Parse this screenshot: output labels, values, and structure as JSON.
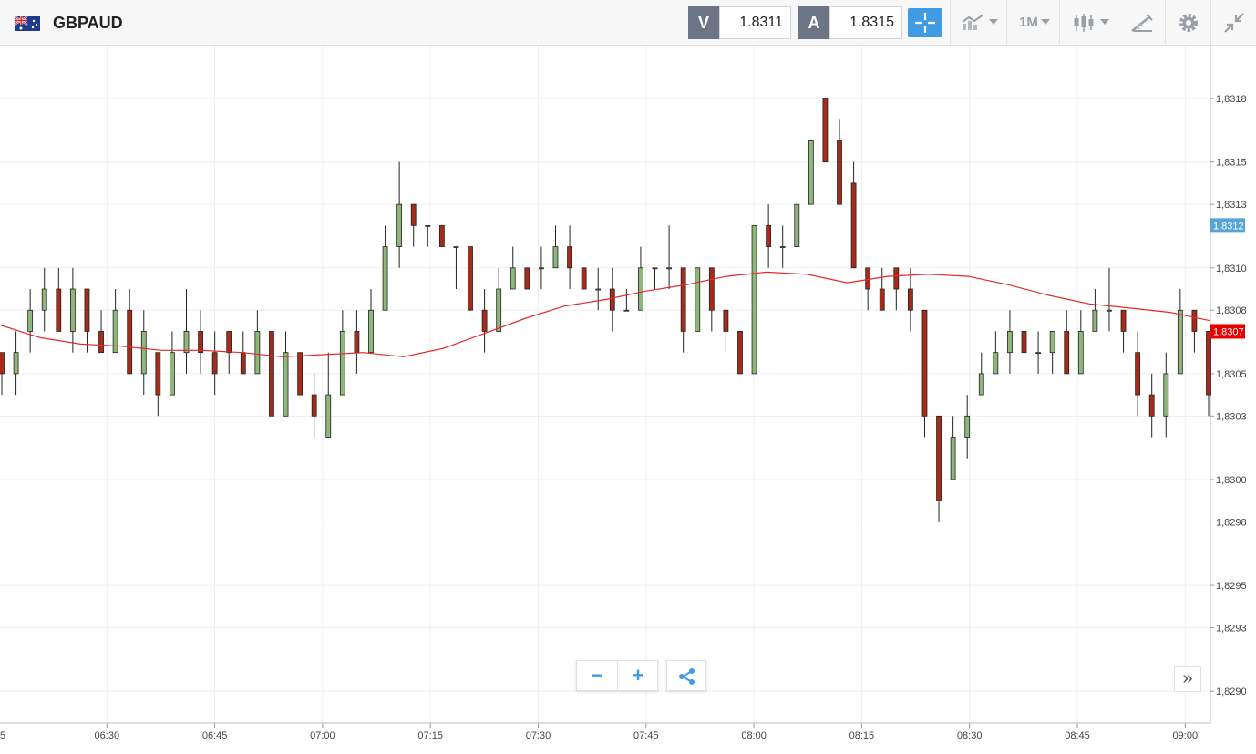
{
  "header": {
    "symbol": "GBPAUD",
    "flag_icon": "gb-au-flag-icon",
    "sell": {
      "label": "V",
      "price": "1.8311"
    },
    "buy": {
      "label": "A",
      "price": "1.8315"
    },
    "timeframe": "1M",
    "icons": [
      "crosshair-icon",
      "indicators-icon",
      "candlestick-icon",
      "drawing-icon",
      "gear-icon",
      "collapse-icon"
    ]
  },
  "colors": {
    "up": "#8fb77b",
    "down": "#a62b1a",
    "ma": "#e12a2a",
    "accent": "#3f9be4",
    "last_price_bg": "#e60000",
    "bid_bg": "#55a4d6"
  },
  "chart_data": {
    "type": "candlestick",
    "ylim": [
      1.82885,
      1.83205
    ],
    "y_ticks": [
      "1,8318",
      "1,8315",
      "1,8313",
      "1,8310",
      "1,8308",
      "1,8305",
      "1,8303",
      "1,8300",
      "1,8298",
      "1,8295",
      "1,8293",
      "1,8290"
    ],
    "x_ticks": [
      "5",
      "06:30",
      "06:45",
      "07:00",
      "07:15",
      "07:30",
      "07:45",
      "08:00",
      "08:15",
      "08:30",
      "08:45",
      "09:00"
    ],
    "price_labels": {
      "bid": "1,8312",
      "last": "1,8307"
    },
    "moving_average": [
      1.83073,
      1.83067,
      1.83064,
      1.83063,
      1.83061,
      1.83061,
      1.8306,
      1.83058,
      1.83059,
      1.8306,
      1.83058,
      1.83062,
      1.83069,
      1.83076,
      1.83082,
      1.83085,
      1.83089,
      1.83092,
      1.83096,
      1.83098,
      1.83097,
      1.83093,
      1.83096,
      1.83097,
      1.83096,
      1.83092,
      1.83087,
      1.83083,
      1.83081,
      1.83079,
      1.83075
    ],
    "candles": [
      [
        1.8306,
        1.8305,
        1.8306,
        1.8304
      ],
      [
        1.8305,
        1.8306,
        1.8307,
        1.8304
      ],
      [
        1.8307,
        1.8308,
        1.8309,
        1.8306
      ],
      [
        1.8308,
        1.8309,
        1.831,
        1.8307
      ],
      [
        1.8309,
        1.8307,
        1.831,
        1.8307
      ],
      [
        1.8307,
        1.8309,
        1.831,
        1.8306
      ],
      [
        1.8309,
        1.8307,
        1.8309,
        1.8306
      ],
      [
        1.8307,
        1.8306,
        1.8308,
        1.8306
      ],
      [
        1.8306,
        1.8308,
        1.8309,
        1.8306
      ],
      [
        1.8308,
        1.8305,
        1.8309,
        1.8305
      ],
      [
        1.8305,
        1.8307,
        1.8308,
        1.8304
      ],
      [
        1.8306,
        1.8304,
        1.8305,
        1.8303
      ],
      [
        1.8304,
        1.8306,
        1.8307,
        1.8304
      ],
      [
        1.8306,
        1.8307,
        1.8309,
        1.8305
      ],
      [
        1.8307,
        1.8306,
        1.8308,
        1.8305
      ],
      [
        1.8306,
        1.8305,
        1.8307,
        1.8304
      ],
      [
        1.8307,
        1.8306,
        1.8307,
        1.8305
      ],
      [
        1.8306,
        1.8305,
        1.8307,
        1.8305
      ],
      [
        1.8305,
        1.8307,
        1.8308,
        1.8305
      ],
      [
        1.8307,
        1.8303,
        1.8307,
        1.8303
      ],
      [
        1.8303,
        1.8306,
        1.8307,
        1.8303
      ],
      [
        1.8306,
        1.8304,
        1.8306,
        1.8304
      ],
      [
        1.8304,
        1.8303,
        1.8305,
        1.8302
      ],
      [
        1.8302,
        1.8304,
        1.8306,
        1.8302
      ],
      [
        1.8304,
        1.8307,
        1.8308,
        1.8304
      ],
      [
        1.8307,
        1.8306,
        1.8308,
        1.8305
      ],
      [
        1.8306,
        1.8308,
        1.8309,
        1.8306
      ],
      [
        1.8308,
        1.8311,
        1.8312,
        1.8308
      ],
      [
        1.8311,
        1.8313,
        1.8315,
        1.831
      ],
      [
        1.8313,
        1.8312,
        1.8313,
        1.8311
      ],
      [
        1.8312,
        1.8312,
        1.8312,
        1.8311
      ],
      [
        1.8312,
        1.8311,
        1.8312,
        1.8311
      ],
      [
        1.8311,
        1.8311,
        1.8311,
        1.8309
      ],
      [
        1.8311,
        1.8308,
        1.8311,
        1.8308
      ],
      [
        1.8308,
        1.8307,
        1.8309,
        1.8306
      ],
      [
        1.8307,
        1.8309,
        1.831,
        1.8307
      ],
      [
        1.8309,
        1.831,
        1.8311,
        1.8309
      ],
      [
        1.831,
        1.8309,
        1.831,
        1.8309
      ],
      [
        1.831,
        1.831,
        1.8311,
        1.8309
      ],
      [
        1.831,
        1.8311,
        1.8312,
        1.831
      ],
      [
        1.8311,
        1.831,
        1.8312,
        1.8309
      ],
      [
        1.831,
        1.8309,
        1.831,
        1.8309
      ],
      [
        1.8309,
        1.8309,
        1.831,
        1.8308
      ],
      [
        1.8309,
        1.8308,
        1.831,
        1.8307
      ],
      [
        1.8308,
        1.8308,
        1.8309,
        1.8308
      ],
      [
        1.8308,
        1.831,
        1.8311,
        1.8308
      ],
      [
        1.831,
        1.831,
        1.831,
        1.8309
      ],
      [
        1.831,
        1.831,
        1.8312,
        1.8309
      ],
      [
        1.831,
        1.8307,
        1.831,
        1.8306
      ],
      [
        1.8307,
        1.831,
        1.831,
        1.8307
      ],
      [
        1.831,
        1.8308,
        1.831,
        1.8307
      ],
      [
        1.8308,
        1.8307,
        1.8308,
        1.8306
      ],
      [
        1.8307,
        1.8305,
        1.8307,
        1.8305
      ],
      [
        1.8305,
        1.8312,
        1.8312,
        1.8305
      ],
      [
        1.8312,
        1.8311,
        1.8313,
        1.831
      ],
      [
        1.8311,
        1.8311,
        1.8312,
        1.831
      ],
      [
        1.8311,
        1.8313,
        1.8313,
        1.8311
      ],
      [
        1.8313,
        1.8316,
        1.8316,
        1.8313
      ],
      [
        1.8318,
        1.8315,
        1.8318,
        1.8315
      ],
      [
        1.8316,
        1.8313,
        1.8317,
        1.8313
      ],
      [
        1.8314,
        1.831,
        1.8315,
        1.831
      ],
      [
        1.831,
        1.8309,
        1.831,
        1.8308
      ],
      [
        1.8309,
        1.8308,
        1.831,
        1.8308
      ],
      [
        1.831,
        1.8309,
        1.831,
        1.8308
      ],
      [
        1.8309,
        1.8308,
        1.831,
        1.8307
      ],
      [
        1.8308,
        1.8303,
        1.8308,
        1.8302
      ],
      [
        1.8303,
        1.8299,
        1.8303,
        1.8298
      ],
      [
        1.83,
        1.8302,
        1.8303,
        1.83
      ],
      [
        1.8302,
        1.8303,
        1.8304,
        1.8301
      ],
      [
        1.8304,
        1.8305,
        1.8306,
        1.8304
      ],
      [
        1.8305,
        1.8306,
        1.8307,
        1.8305
      ],
      [
        1.8306,
        1.8307,
        1.8308,
        1.8305
      ],
      [
        1.8307,
        1.8306,
        1.8308,
        1.8306
      ],
      [
        1.8306,
        1.8306,
        1.8307,
        1.8305
      ],
      [
        1.8306,
        1.8307,
        1.8307,
        1.8305
      ],
      [
        1.8307,
        1.8305,
        1.8308,
        1.8305
      ],
      [
        1.8305,
        1.8307,
        1.8308,
        1.8305
      ],
      [
        1.8307,
        1.8308,
        1.8309,
        1.8307
      ],
      [
        1.8308,
        1.8308,
        1.831,
        1.8307
      ],
      [
        1.8308,
        1.8307,
        1.8308,
        1.8306
      ],
      [
        1.8306,
        1.8304,
        1.8307,
        1.8303
      ],
      [
        1.8304,
        1.8303,
        1.8305,
        1.8302
      ],
      [
        1.8303,
        1.8305,
        1.8306,
        1.8302
      ],
      [
        1.8305,
        1.8308,
        1.8309,
        1.8305
      ],
      [
        1.8308,
        1.8307,
        1.8308,
        1.8306
      ],
      [
        1.8307,
        1.8304,
        1.8307,
        1.8303
      ]
    ]
  },
  "controls": {
    "zoom_out": "−",
    "zoom_in": "+",
    "share_icon": "share-icon",
    "scroll_icon": "double-chevron-right-icon",
    "scroll_label": "»"
  }
}
